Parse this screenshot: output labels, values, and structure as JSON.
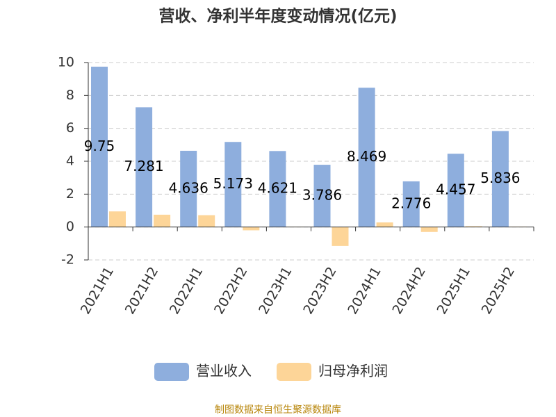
{
  "chart_data": {
    "type": "bar",
    "title": "营收、净利半年度变动情况(亿元)",
    "categories": [
      "2021H1",
      "2021H2",
      "2022H1",
      "2022H2",
      "2023H1",
      "2023H2",
      "2024H1",
      "2024H2",
      "2025H1",
      "2025H2"
    ],
    "series": [
      {
        "name": "营业收入",
        "color": "#8eaedd",
        "values": [
          9.75,
          7.281,
          4.636,
          5.173,
          4.621,
          3.786,
          8.469,
          2.776,
          4.457,
          5.836
        ]
      },
      {
        "name": "归母净利润",
        "color": "#fdd598",
        "values": [
          0.95,
          0.75,
          0.72,
          -0.2,
          0.02,
          -1.15,
          0.28,
          -0.3,
          0.05,
          0.03
        ]
      }
    ],
    "ylim": [
      -2,
      10
    ],
    "yticks": [
      -2,
      0,
      2,
      4,
      6,
      8,
      10
    ],
    "grid": true,
    "source": "制图数据来自恒生聚源数据库"
  }
}
